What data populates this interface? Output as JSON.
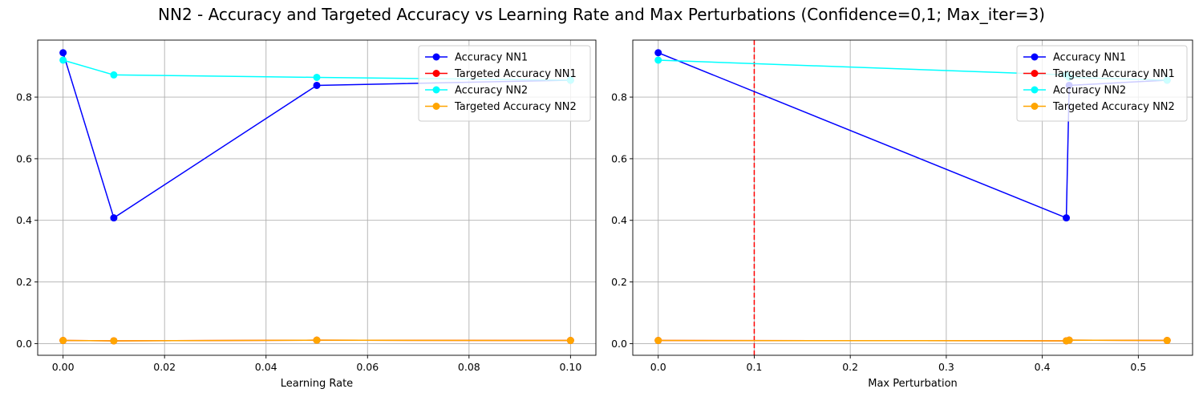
{
  "suptitle": "NN2 - Accuracy and Targeted Accuracy vs Learning Rate and Max Perturbations (Confidence=0,1; Max_iter=3)",
  "chart_data": [
    {
      "type": "line",
      "title": "",
      "xlabel": "Learning Rate",
      "ylabel": "",
      "xlim": [
        -0.005,
        0.105
      ],
      "ylim": [
        -0.038,
        0.985
      ],
      "xticks": [
        0.0,
        0.02,
        0.04,
        0.06,
        0.08,
        0.1
      ],
      "xtick_labels": [
        "0.00",
        "0.02",
        "0.04",
        "0.06",
        "0.08",
        "0.10"
      ],
      "yticks": [
        0.0,
        0.2,
        0.4,
        0.6,
        0.8
      ],
      "ytick_labels": [
        "0.0",
        "0.2",
        "0.4",
        "0.6",
        "0.8"
      ],
      "grid": true,
      "legend_position": "upper right",
      "series": [
        {
          "name": "Accuracy NN1",
          "color": "#0000ff",
          "x": [
            0.0,
            0.01,
            0.05,
            0.1
          ],
          "y": [
            0.944,
            0.408,
            0.838,
            0.855
          ]
        },
        {
          "name": "Targeted Accuracy NN1",
          "color": "#ff0000",
          "x": [
            0.0,
            0.01,
            0.05,
            0.1
          ],
          "y": [
            0.01,
            0.009,
            0.011,
            0.01
          ]
        },
        {
          "name": "Accuracy NN2",
          "color": "#00ffff",
          "x": [
            0.0,
            0.01,
            0.05,
            0.1
          ],
          "y": [
            0.92,
            0.872,
            0.864,
            0.855
          ]
        },
        {
          "name": "Targeted Accuracy NN2",
          "color": "#ffa500",
          "x": [
            0.0,
            0.01,
            0.05,
            0.1
          ],
          "y": [
            0.01,
            0.009,
            0.011,
            0.01
          ]
        }
      ]
    },
    {
      "type": "line",
      "title": "",
      "xlabel": "Max Perturbation",
      "ylabel": "",
      "xlim": [
        -0.0265,
        0.5565
      ],
      "ylim": [
        -0.038,
        0.985
      ],
      "xticks": [
        0.0,
        0.1,
        0.2,
        0.3,
        0.4,
        0.5
      ],
      "xtick_labels": [
        "0.0",
        "0.1",
        "0.2",
        "0.3",
        "0.4",
        "0.5"
      ],
      "yticks": [
        0.0,
        0.2,
        0.4,
        0.6,
        0.8
      ],
      "ytick_labels": [
        "0.0",
        "0.2",
        "0.4",
        "0.6",
        "0.8"
      ],
      "grid": true,
      "legend_position": "upper right",
      "vline": {
        "x": 0.1,
        "color": "#ff0000",
        "style": "dashed"
      },
      "series": [
        {
          "name": "Accuracy NN1",
          "color": "#0000ff",
          "x": [
            0.0,
            0.425,
            0.428,
            0.53
          ],
          "y": [
            0.944,
            0.408,
            0.838,
            0.855
          ]
        },
        {
          "name": "Targeted Accuracy NN1",
          "color": "#ff0000",
          "x": [
            0.0,
            0.425,
            0.428,
            0.53
          ],
          "y": [
            0.01,
            0.009,
            0.011,
            0.01
          ]
        },
        {
          "name": "Accuracy NN2",
          "color": "#00ffff",
          "x": [
            0.0,
            0.425,
            0.428,
            0.53
          ],
          "y": [
            0.92,
            0.872,
            0.864,
            0.855
          ]
        },
        {
          "name": "Targeted Accuracy NN2",
          "color": "#ffa500",
          "x": [
            0.0,
            0.425,
            0.428,
            0.53
          ],
          "y": [
            0.01,
            0.009,
            0.011,
            0.01
          ]
        }
      ]
    }
  ]
}
